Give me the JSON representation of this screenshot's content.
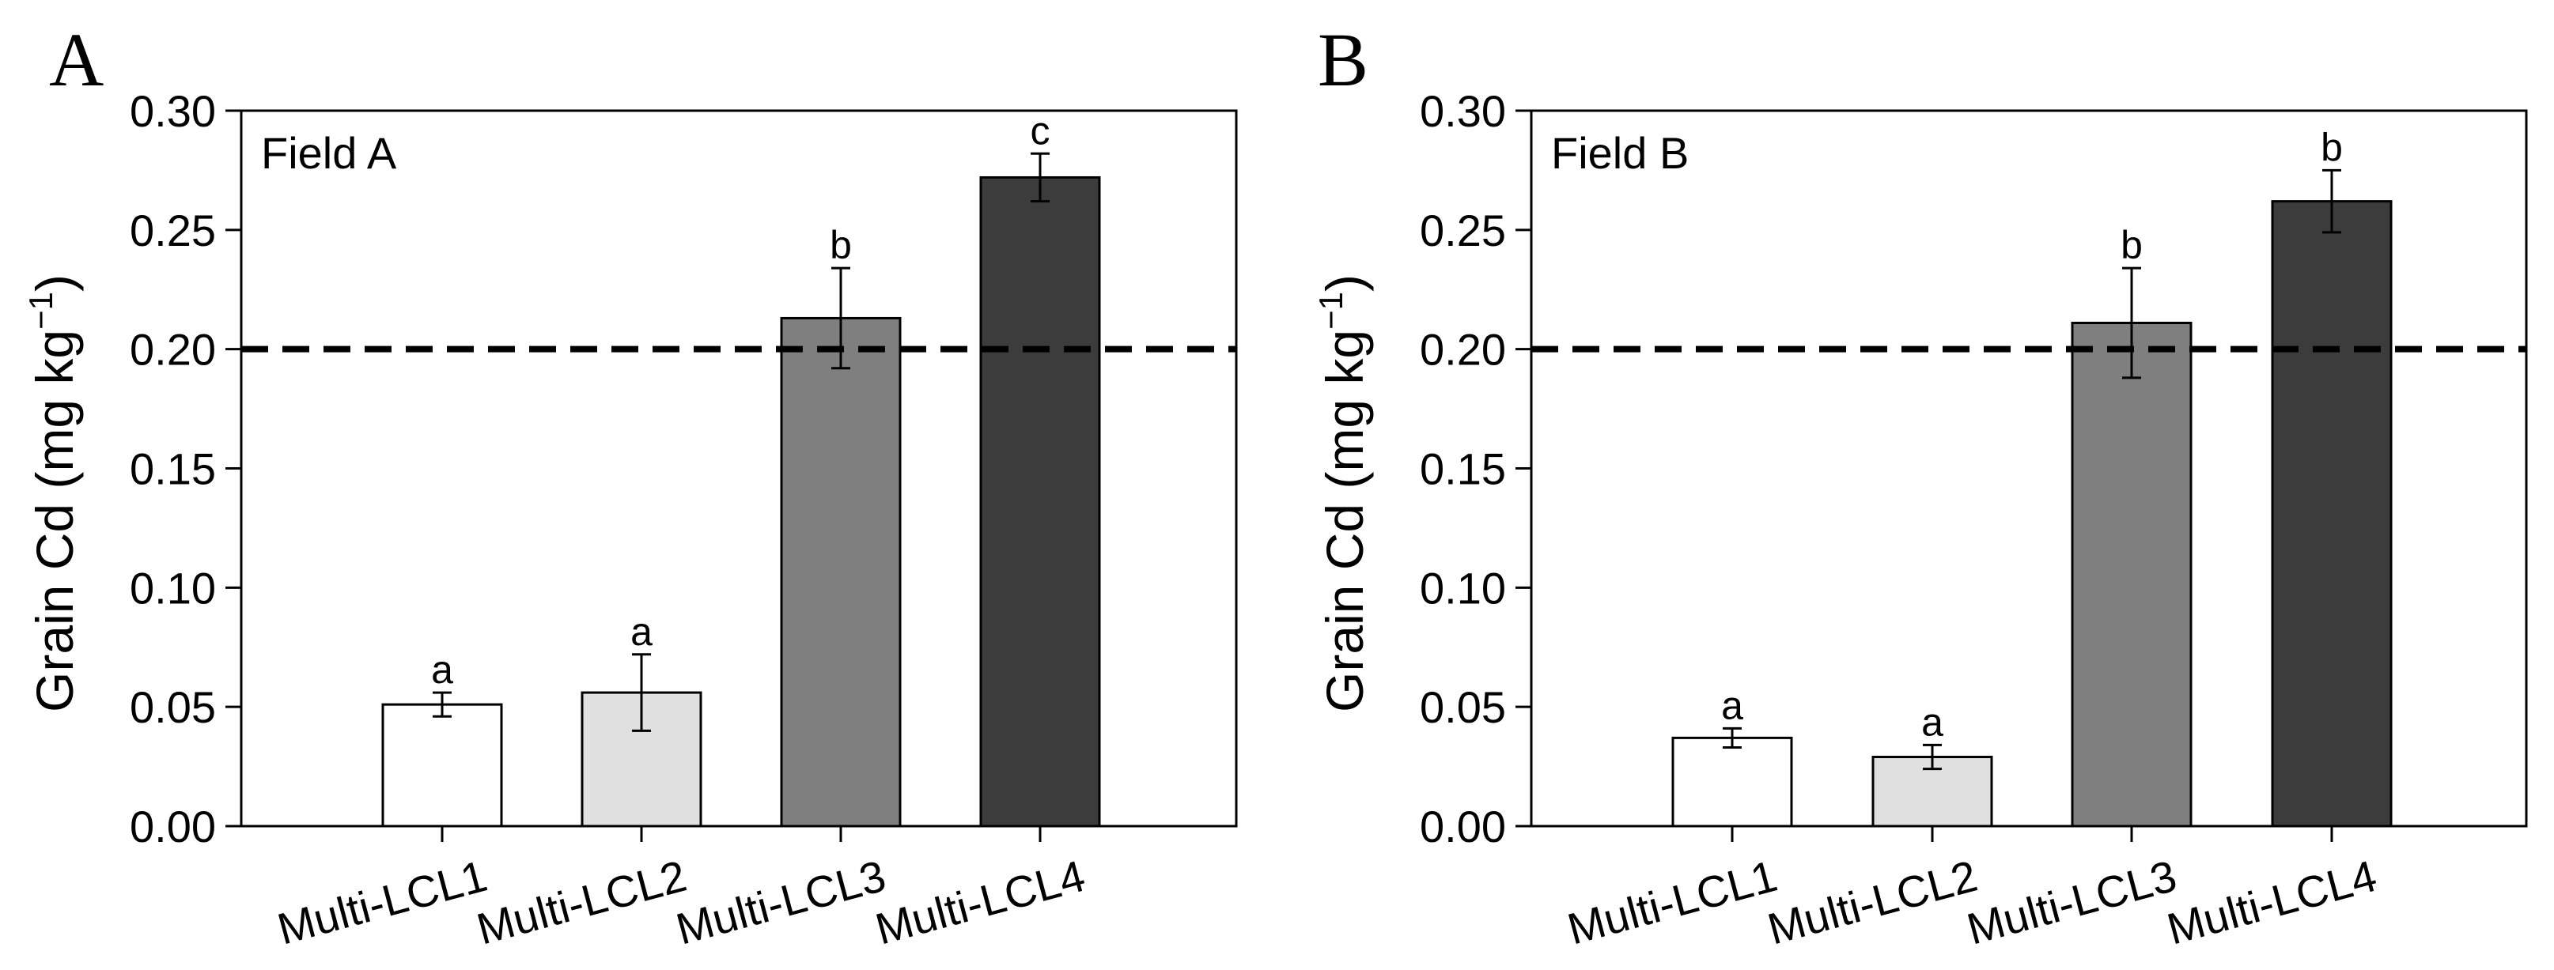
{
  "chart_data": [
    {
      "type": "bar",
      "panel_letter": "A",
      "field_label": "Field A",
      "ylabel": {
        "text": "Grain Cd (mg kg",
        "superscript": "−1",
        "close": ")"
      },
      "xlabel": "",
      "categories": [
        "Multi-LCL1",
        "Multi-LCL2",
        "Multi-LCL3",
        "Multi-LCL4"
      ],
      "values": [
        0.051,
        0.056,
        0.213,
        0.272
      ],
      "errors": [
        0.005,
        0.016,
        0.021,
        0.01
      ],
      "significance": [
        "a",
        "a",
        "b",
        "c"
      ],
      "bar_colors": [
        "#ffffff",
        "#e0e0e0",
        "#7f7f7f",
        "#3c3c3c"
      ],
      "threshold": 0.2,
      "ylim": [
        0,
        0.3
      ],
      "yticks": [
        "0.00",
        "0.05",
        "0.10",
        "0.15",
        "0.20",
        "0.25",
        "0.30"
      ],
      "grid": false
    },
    {
      "type": "bar",
      "panel_letter": "B",
      "field_label": "Field B",
      "ylabel": {
        "text": "Grain Cd (mg kg",
        "superscript": "−1",
        "close": ")"
      },
      "xlabel": "",
      "categories": [
        "Multi-LCL1",
        "Multi-LCL2",
        "Multi-LCL3",
        "Multi-LCL4"
      ],
      "values": [
        0.037,
        0.029,
        0.211,
        0.262
      ],
      "errors": [
        0.004,
        0.005,
        0.023,
        0.013
      ],
      "significance": [
        "a",
        "a",
        "b",
        "b"
      ],
      "bar_colors": [
        "#ffffff",
        "#e0e0e0",
        "#7f7f7f",
        "#3c3c3c"
      ],
      "threshold": 0.2,
      "ylim": [
        0,
        0.3
      ],
      "yticks": [
        "0.00",
        "0.05",
        "0.10",
        "0.15",
        "0.20",
        "0.25",
        "0.30"
      ],
      "grid": false
    }
  ]
}
